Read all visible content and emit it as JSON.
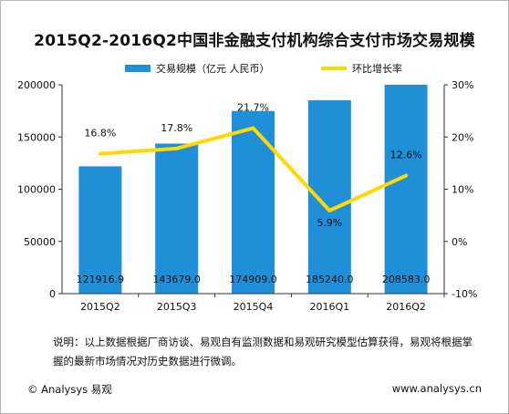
{
  "chart_data": {
    "type": "bar+line",
    "title": "2015Q2-2016Q2中国非金融支付机构综合支付市场交易规模",
    "categories": [
      "2015Q2",
      "2015Q3",
      "2015Q4",
      "2016Q1",
      "2016Q2"
    ],
    "series": [
      {
        "name": "交易规模（亿元 人民币）",
        "type": "bar",
        "axis": "left",
        "values": [
          121916.9,
          143679.0,
          174909.0,
          185240.0,
          208583.0
        ],
        "labels": [
          "121916.9",
          "143679.0",
          "174909.0",
          "185240.0",
          "208583.0"
        ]
      },
      {
        "name": "环比增长率",
        "type": "line",
        "axis": "right",
        "values": [
          16.8,
          17.8,
          21.7,
          5.9,
          12.6
        ],
        "labels": [
          "16.8%",
          "17.8%",
          "21.7%",
          "5.9%",
          "12.6%"
        ]
      }
    ],
    "y_left": {
      "range": [
        0,
        200000
      ],
      "ticks": [
        "0",
        "50000",
        "100000",
        "150000",
        "200000"
      ]
    },
    "y_right": {
      "range": [
        -10,
        30
      ],
      "ticks": [
        "-10%",
        "0%",
        "10%",
        "20%",
        "30%"
      ]
    },
    "legend_position": "top",
    "colors": {
      "bar": "#1f8fd8",
      "line": "#ffd900"
    }
  },
  "note": "说明：以上数据根据厂商访谈、易观自有监测数据和易观研究模型估算获得，易观将根据掌握的最新市场情况对历史数据进行微调。",
  "footer": {
    "source": "© Analysys 易观",
    "website": "www.analysys.cn"
  }
}
